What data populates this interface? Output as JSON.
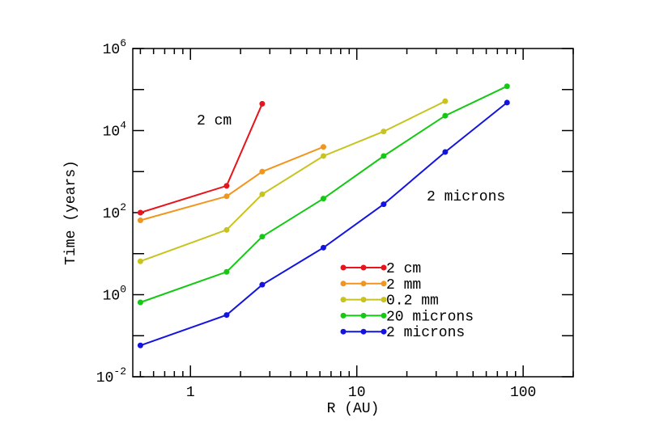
{
  "chart_data": {
    "type": "line",
    "title": "",
    "xlabel": "R (AU)",
    "ylabel": "Time (years)",
    "xscale": "log",
    "yscale": "log",
    "xlim": [
      0.45,
      200
    ],
    "ylim": [
      0.01,
      1000000
    ],
    "x_ticks": [
      1,
      10,
      100
    ],
    "x_tick_labels": [
      "1",
      "10",
      "100"
    ],
    "y_ticks": [
      0.01,
      1,
      100,
      10000,
      1000000
    ],
    "y_tick_labels": [
      {
        "base": "10",
        "exp": "-2"
      },
      {
        "base": "10",
        "exp": "0"
      },
      {
        "base": "10",
        "exp": "2"
      },
      {
        "base": "10",
        "exp": "4"
      },
      {
        "base": "10",
        "exp": "6"
      }
    ],
    "grid": false,
    "legend_position": "center-bottom",
    "series": [
      {
        "name": "2 cm",
        "color": "#e8141c",
        "x": [
          0.5,
          1.65,
          2.7
        ],
        "y": [
          100,
          450,
          45000
        ]
      },
      {
        "name": "2 mm",
        "color": "#f0961e",
        "x": [
          0.5,
          1.65,
          2.7,
          6.3
        ],
        "y": [
          65,
          250,
          1000,
          4000
        ]
      },
      {
        "name": "0.2 mm",
        "color": "#c8c31e",
        "x": [
          0.5,
          1.65,
          2.7,
          6.3,
          14.5,
          34
        ],
        "y": [
          6.5,
          38,
          280,
          2400,
          9500,
          52000
        ]
      },
      {
        "name": "20 microns",
        "color": "#14c814",
        "x": [
          0.5,
          1.65,
          2.7,
          6.3,
          14.5,
          34,
          80
        ],
        "y": [
          0.65,
          3.6,
          26,
          220,
          2400,
          23000,
          120000
        ]
      },
      {
        "name": "2 microns",
        "color": "#1414e1",
        "x": [
          0.5,
          1.65,
          2.7,
          6.3,
          14.5,
          34,
          80
        ],
        "y": [
          0.058,
          0.32,
          1.75,
          14,
          160,
          3000,
          48000
        ]
      }
    ],
    "annotations": [
      {
        "text": "2 cm",
        "near_series": "2 cm"
      },
      {
        "text": "2 microns",
        "near_series": "2 microns"
      }
    ]
  }
}
